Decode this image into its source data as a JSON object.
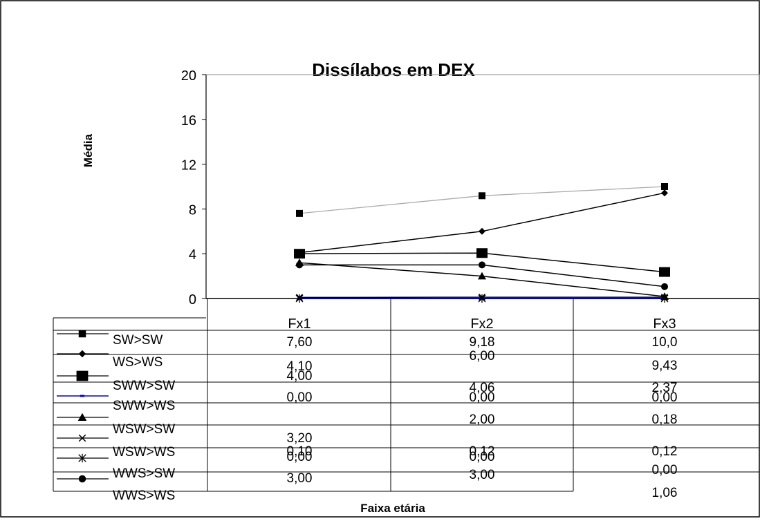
{
  "chart_data": {
    "type": "line",
    "title": "Dissílabos em DEX",
    "ylabel": "Média",
    "xlabel": "Faixa etária",
    "categories": [
      "Fx1",
      "Fx2",
      "Fx3"
    ],
    "yticks": [
      "0",
      "4",
      "8",
      "12",
      "16",
      "20"
    ],
    "ylim": [
      0,
      20
    ],
    "legend_position": "table-left",
    "series": [
      {
        "name": "SW>SW",
        "values": [
          7.6,
          9.18,
          10.0
        ],
        "labels": [
          "7,60",
          "9,18",
          "10,0"
        ],
        "marker": "square-small",
        "color": "#aaaaaa"
      },
      {
        "name": "WS>WS",
        "values": [
          4.1,
          6.0,
          9.43
        ],
        "labels": [
          "4,10",
          "6,00",
          "9,43"
        ],
        "marker": "diamond",
        "color": "#000000"
      },
      {
        "name": "SWW>SW",
        "values": [
          4.0,
          4.06,
          2.37
        ],
        "labels": [
          "4,00",
          "4,06",
          "2,37"
        ],
        "marker": "square-large",
        "color": "#000000"
      },
      {
        "name": "SWW>WS",
        "values": [
          0.0,
          0.0,
          0.0
        ],
        "labels": [
          "0,00",
          "0,00",
          "0,00"
        ],
        "marker": "dash",
        "color": "#0000cc"
      },
      {
        "name": "WSW>SW",
        "values": [
          3.2,
          2.0,
          0.18
        ],
        "labels": [
          "3,20",
          "2,00",
          "0,18"
        ],
        "marker": "triangle",
        "color": "#000000"
      },
      {
        "name": "WSW>WS",
        "values": [
          0.1,
          0.12,
          0.12
        ],
        "labels": [
          "0,10",
          "0,12",
          "0,12"
        ],
        "marker": "x",
        "color": "#000000"
      },
      {
        "name": "WWS>SW",
        "values": [
          0.0,
          0.0,
          0.0
        ],
        "labels": [
          "0,00",
          "0,00",
          "0,00"
        ],
        "marker": "star",
        "color": "#888888"
      },
      {
        "name": "WWS>WS",
        "values": [
          3.0,
          3.0,
          1.06
        ],
        "labels": [
          "3,00",
          "3,00",
          "1,06"
        ],
        "marker": "circle",
        "color": "#000000"
      }
    ]
  }
}
